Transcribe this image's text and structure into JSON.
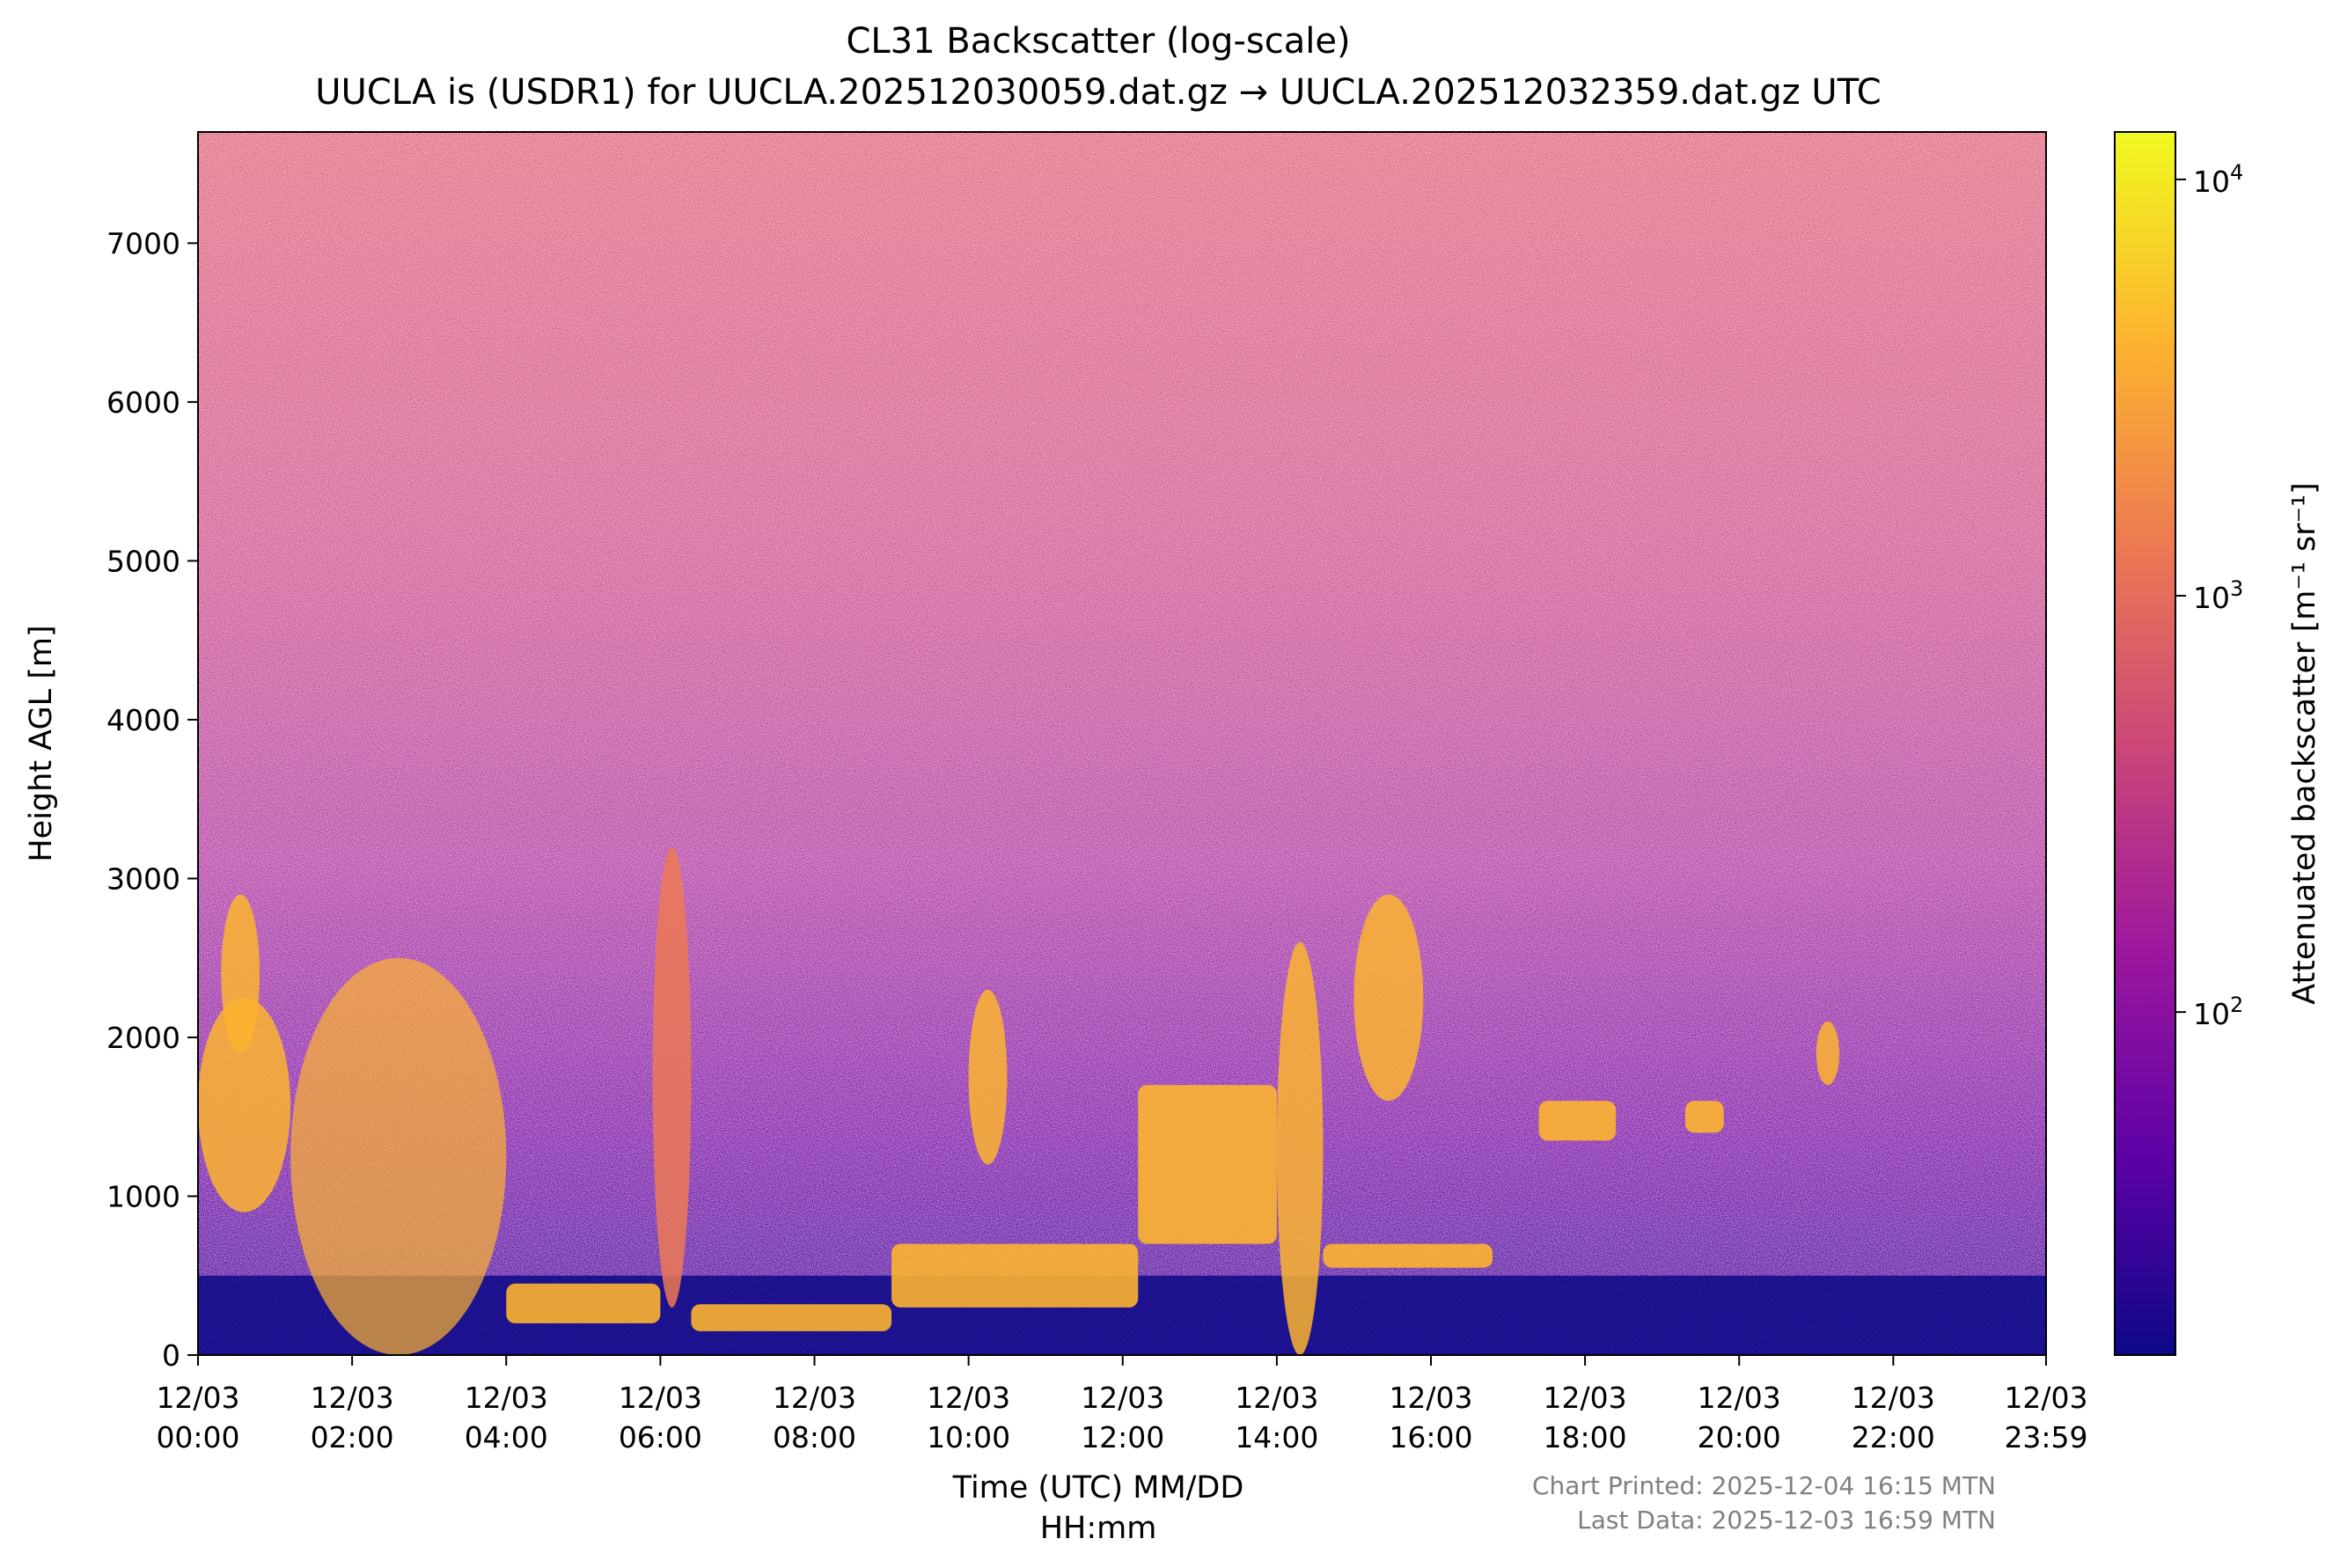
{
  "chart_data": {
    "type": "heatmap",
    "title": "CL31 Backscatter (log-scale)",
    "subtitle": "UUCLA is (USDR1) for UUCLA.202512030059.dat.gz → UUCLA.202512032359.dat.gz UTC",
    "xlabel_line1": "Time (UTC) MM/DD",
    "xlabel_line2": "HH:mm",
    "ylabel": "Height AGL [m]",
    "x_ticks": [
      {
        "date": "12/03",
        "time": "00:00",
        "hour": 0
      },
      {
        "date": "12/03",
        "time": "02:00",
        "hour": 2
      },
      {
        "date": "12/03",
        "time": "04:00",
        "hour": 4
      },
      {
        "date": "12/03",
        "time": "06:00",
        "hour": 6
      },
      {
        "date": "12/03",
        "time": "08:00",
        "hour": 8
      },
      {
        "date": "12/03",
        "time": "10:00",
        "hour": 10
      },
      {
        "date": "12/03",
        "time": "12:00",
        "hour": 12
      },
      {
        "date": "12/03",
        "time": "14:00",
        "hour": 14
      },
      {
        "date": "12/03",
        "time": "16:00",
        "hour": 16
      },
      {
        "date": "12/03",
        "time": "18:00",
        "hour": 18
      },
      {
        "date": "12/03",
        "time": "20:00",
        "hour": 20
      },
      {
        "date": "12/03",
        "time": "22:00",
        "hour": 22
      },
      {
        "date": "12/03",
        "time": "23:59",
        "hour": 23.983
      }
    ],
    "y_ticks": [
      0,
      1000,
      2000,
      3000,
      4000,
      5000,
      6000,
      7000
    ],
    "xlim_hours": [
      0,
      23.983
    ],
    "ylim": [
      0,
      7700
    ],
    "colorbar": {
      "label": "Attenuated backscatter [m⁻¹ sr⁻¹]",
      "scale": "log",
      "range": [
        15,
        13000
      ],
      "ticks": [
        {
          "value": 100,
          "base": "10",
          "exp": "2"
        },
        {
          "value": 1000,
          "base": "10",
          "exp": "3"
        },
        {
          "value": 10000,
          "base": "10",
          "exp": "4"
        }
      ],
      "colormap": "plasma",
      "colors": [
        "#0d0887",
        "#5c01a6",
        "#9c179e",
        "#cc4778",
        "#ed7953",
        "#fdb42f",
        "#f0f921"
      ]
    },
    "features": [
      {
        "kind": "cloud",
        "t0": 0.0,
        "t1": 1.2,
        "h0": 900,
        "h1": 2250,
        "intensity": 5000
      },
      {
        "kind": "cloud",
        "t0": 0.3,
        "t1": 0.8,
        "h0": 1900,
        "h1": 2900,
        "intensity": 4000
      },
      {
        "kind": "plume",
        "t0": 1.2,
        "t1": 4.0,
        "h0": 0,
        "h1": 2500,
        "intensity": 3000
      },
      {
        "kind": "layer",
        "t0": 4.0,
        "t1": 6.0,
        "h0": 200,
        "h1": 450,
        "intensity": 6000
      },
      {
        "kind": "column",
        "t0": 5.9,
        "t1": 6.4,
        "h0": 300,
        "h1": 3200,
        "intensity": 1500
      },
      {
        "kind": "layer",
        "t0": 6.4,
        "t1": 9.0,
        "h0": 150,
        "h1": 320,
        "intensity": 5000
      },
      {
        "kind": "cloud",
        "t0": 10.0,
        "t1": 10.5,
        "h0": 1200,
        "h1": 2300,
        "intensity": 3000
      },
      {
        "kind": "layer",
        "t0": 9.0,
        "t1": 12.2,
        "h0": 300,
        "h1": 700,
        "intensity": 4000
      },
      {
        "kind": "layer",
        "t0": 12.2,
        "t1": 14.0,
        "h0": 700,
        "h1": 1700,
        "intensity": 4000
      },
      {
        "kind": "column",
        "t0": 14.0,
        "t1": 14.6,
        "h0": 0,
        "h1": 2600,
        "intensity": 5000
      },
      {
        "kind": "layer",
        "t0": 14.6,
        "t1": 16.8,
        "h0": 550,
        "h1": 700,
        "intensity": 3000
      },
      {
        "kind": "cloud",
        "t0": 15.0,
        "t1": 15.9,
        "h0": 1600,
        "h1": 2900,
        "intensity": 3500
      },
      {
        "kind": "layer",
        "t0": 17.4,
        "t1": 18.4,
        "h0": 1350,
        "h1": 1600,
        "intensity": 4000
      },
      {
        "kind": "layer",
        "t0": 19.3,
        "t1": 19.8,
        "h0": 1400,
        "h1": 1600,
        "intensity": 3500
      },
      {
        "kind": "cloud",
        "t0": 21.0,
        "t1": 21.3,
        "h0": 1700,
        "h1": 2100,
        "intensity": 2500
      }
    ]
  },
  "footer": {
    "printed": "Chart Printed: 2025-12-04 16:15 MTN",
    "last_data": "Last Data: 2025-12-03 16:59 MTN"
  }
}
